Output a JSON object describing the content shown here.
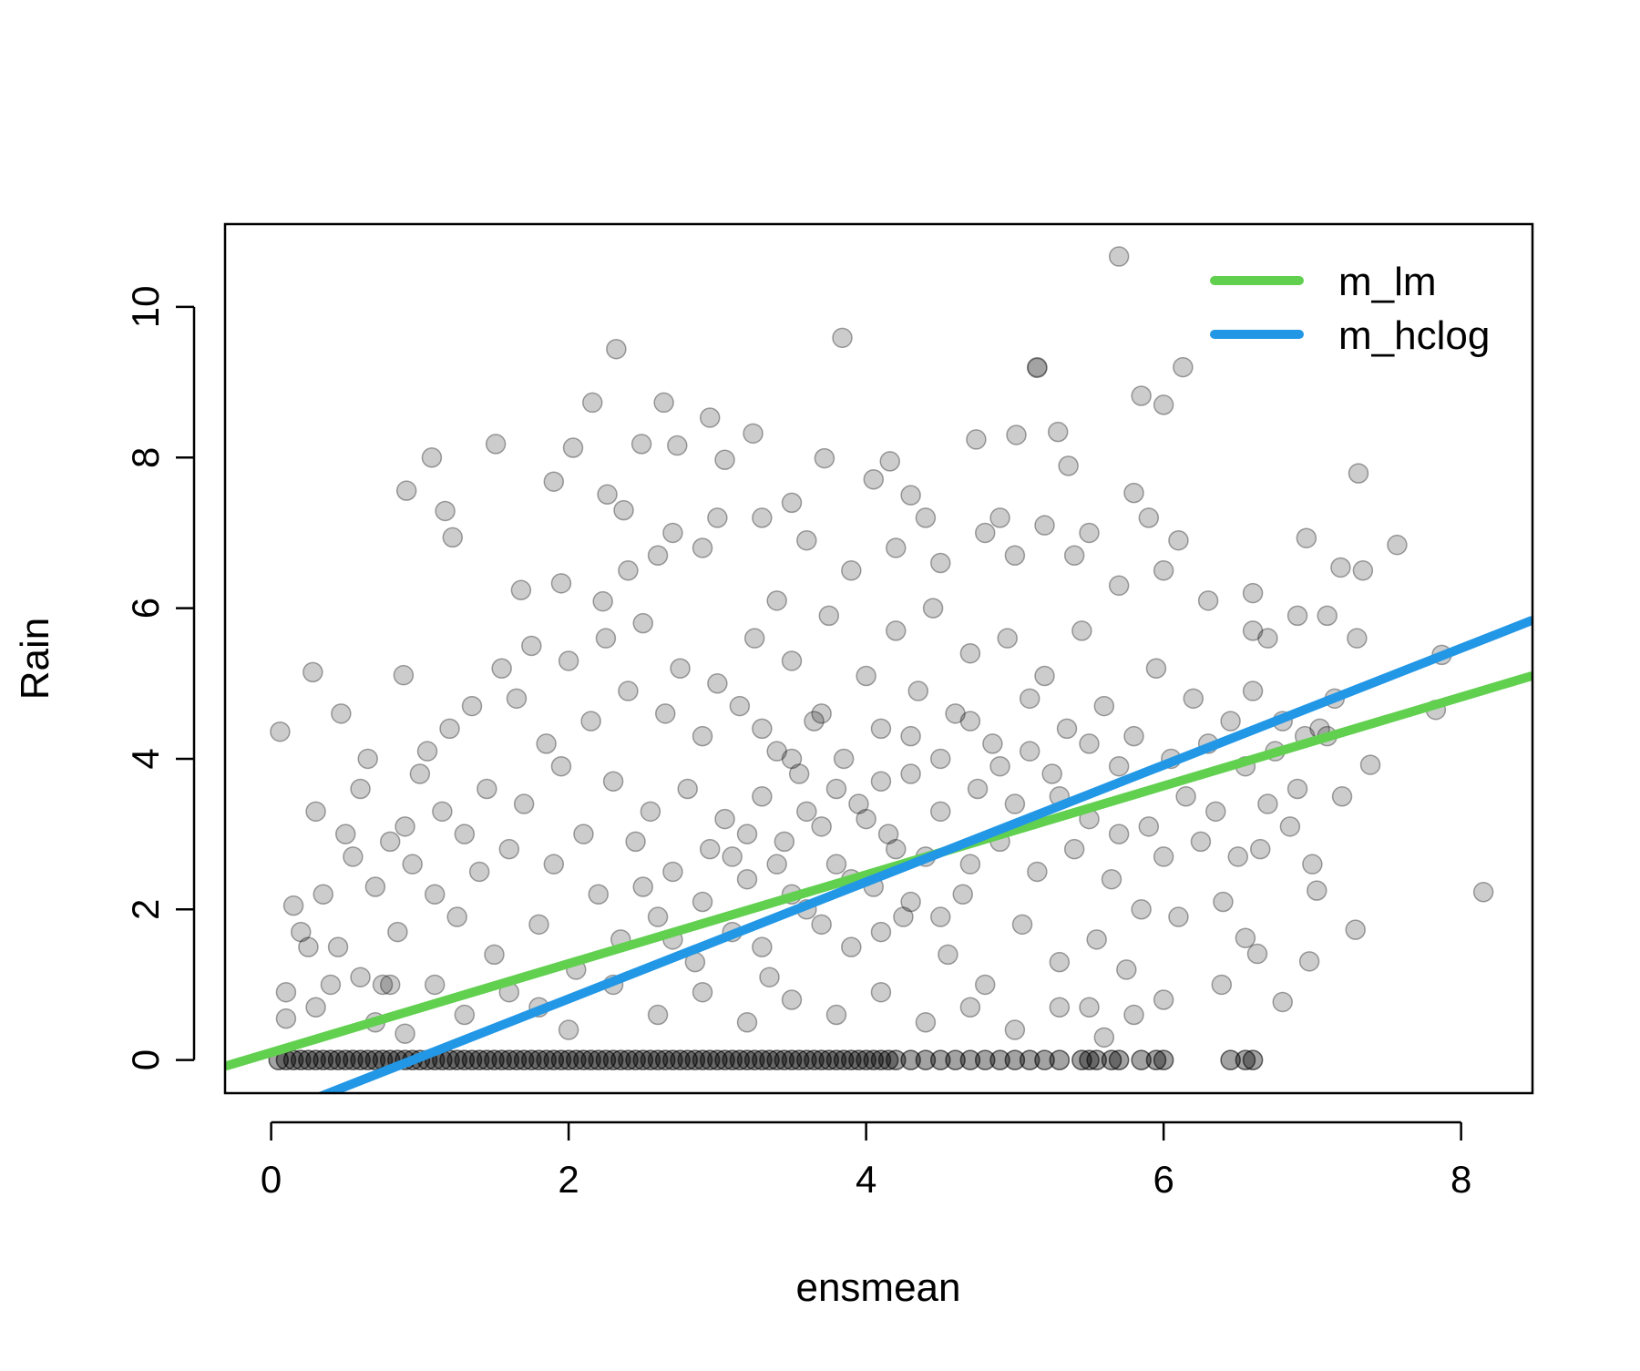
{
  "chart_data": {
    "type": "scatter",
    "title": "",
    "xlabel": "ensmean",
    "ylabel": "Rain",
    "xlim": [
      -0.31,
      8.48
    ],
    "ylim": [
      -0.44,
      11.1
    ],
    "x_ticks": [
      "0",
      "2",
      "4",
      "6",
      "8"
    ],
    "y_ticks": [
      "0",
      "2",
      "4",
      "6",
      "8",
      "10"
    ],
    "grid": false,
    "legend_position": "top-right",
    "point_color": "#000000",
    "point_alpha": 0.2,
    "points": [
      [
        5.7,
        10.67
      ],
      [
        2.32,
        9.44
      ],
      [
        3.84,
        9.59
      ],
      [
        5.15,
        9.19
      ],
      [
        5.15,
        9.2
      ],
      [
        6.13,
        9.2
      ],
      [
        5.85,
        8.82
      ],
      [
        6.0,
        8.7
      ],
      [
        2.16,
        8.73
      ],
      [
        2.64,
        8.73
      ],
      [
        2.95,
        8.53
      ],
      [
        3.24,
        8.32
      ],
      [
        5.29,
        8.34
      ],
      [
        5.01,
        8.3
      ],
      [
        4.74,
        8.24
      ],
      [
        2.49,
        8.18
      ],
      [
        1.51,
        8.18
      ],
      [
        2.03,
        8.13
      ],
      [
        2.73,
        8.16
      ],
      [
        1.08,
        8.0
      ],
      [
        3.05,
        7.97
      ],
      [
        3.72,
        7.99
      ],
      [
        4.16,
        7.95
      ],
      [
        5.36,
        7.89
      ],
      [
        7.31,
        7.79
      ],
      [
        0.91,
        7.56
      ],
      [
        1.9,
        7.68
      ],
      [
        2.26,
        7.51
      ],
      [
        4.05,
        7.71
      ],
      [
        5.8,
        7.53
      ],
      [
        1.17,
        7.29
      ],
      [
        2.37,
        7.3
      ],
      [
        1.22,
        6.94
      ],
      [
        7.57,
        6.84
      ],
      [
        6.96,
        6.93
      ],
      [
        7.19,
        6.54
      ],
      [
        7.34,
        6.5
      ],
      [
        1.68,
        6.24
      ],
      [
        1.95,
        6.33
      ],
      [
        2.23,
        6.09
      ],
      [
        0.28,
        5.15
      ],
      [
        0.89,
        5.11
      ],
      [
        0.06,
        4.36
      ],
      [
        0.47,
        4.6
      ],
      [
        8.15,
        2.23
      ],
      [
        7.87,
        5.38
      ],
      [
        7.83,
        4.65
      ],
      [
        7.39,
        3.92
      ],
      [
        7.29,
        1.73
      ],
      [
        6.98,
        1.31
      ],
      [
        6.8,
        0.77
      ],
      [
        6.39,
        1.0
      ],
      [
        7.03,
        2.25
      ],
      [
        6.55,
        1.62
      ],
      [
        6.63,
        1.41
      ],
      [
        4.4,
        7.2
      ],
      [
        4.3,
        7.5
      ],
      [
        4.8,
        7.0
      ],
      [
        4.9,
        7.2
      ],
      [
        5.2,
        7.1
      ],
      [
        5.5,
        7.0
      ],
      [
        5.9,
        7.2
      ],
      [
        6.1,
        6.9
      ],
      [
        3.5,
        7.4
      ],
      [
        3.0,
        7.2
      ],
      [
        3.3,
        7.2
      ],
      [
        2.7,
        7.0
      ],
      [
        2.9,
        6.8
      ],
      [
        3.6,
        6.9
      ],
      [
        3.9,
        6.5
      ],
      [
        4.2,
        6.8
      ],
      [
        4.5,
        6.6
      ],
      [
        5.0,
        6.7
      ],
      [
        5.4,
        6.7
      ],
      [
        5.7,
        6.3
      ],
      [
        6.0,
        6.5
      ],
      [
        6.3,
        6.1
      ],
      [
        6.6,
        6.2
      ],
      [
        6.9,
        5.9
      ],
      [
        7.1,
        5.9
      ],
      [
        7.3,
        5.6
      ],
      [
        6.7,
        5.6
      ],
      [
        2.4,
        6.5
      ],
      [
        2.6,
        6.7
      ],
      [
        3.4,
        6.1
      ],
      [
        0.1,
        0.9
      ],
      [
        0.1,
        0.55
      ],
      [
        0.2,
        1.7
      ],
      [
        0.15,
        2.05
      ],
      [
        0.3,
        3.3
      ],
      [
        0.25,
        1.5
      ],
      [
        0.35,
        2.2
      ],
      [
        0.4,
        1.0
      ],
      [
        0.45,
        1.5
      ],
      [
        0.3,
        0.7
      ],
      [
        0.5,
        3.0
      ],
      [
        0.55,
        2.7
      ],
      [
        0.6,
        3.6
      ],
      [
        0.65,
        4.0
      ],
      [
        0.7,
        2.3
      ],
      [
        0.75,
        1.0
      ],
      [
        0.8,
        2.9
      ],
      [
        0.85,
        1.7
      ],
      [
        0.9,
        3.1
      ],
      [
        0.95,
        2.6
      ],
      [
        0.6,
        1.1
      ],
      [
        0.7,
        0.5
      ],
      [
        0.8,
        1.0
      ],
      [
        0.9,
        0.35
      ],
      [
        1.0,
        3.8
      ],
      [
        1.05,
        4.1
      ],
      [
        1.1,
        2.2
      ],
      [
        1.15,
        3.3
      ],
      [
        1.2,
        4.4
      ],
      [
        1.25,
        1.9
      ],
      [
        1.3,
        3.0
      ],
      [
        1.35,
        4.7
      ],
      [
        1.4,
        2.5
      ],
      [
        1.45,
        3.6
      ],
      [
        1.5,
        1.4
      ],
      [
        1.55,
        5.2
      ],
      [
        1.6,
        2.8
      ],
      [
        1.65,
        4.8
      ],
      [
        1.7,
        3.4
      ],
      [
        1.75,
        5.5
      ],
      [
        1.8,
        1.8
      ],
      [
        1.85,
        4.2
      ],
      [
        1.9,
        2.6
      ],
      [
        1.95,
        3.9
      ],
      [
        2.0,
        5.3
      ],
      [
        2.05,
        1.2
      ],
      [
        2.1,
        3.0
      ],
      [
        2.15,
        4.5
      ],
      [
        2.2,
        2.2
      ],
      [
        2.25,
        5.6
      ],
      [
        2.3,
        3.7
      ],
      [
        2.35,
        1.6
      ],
      [
        2.4,
        4.9
      ],
      [
        2.45,
        2.9
      ],
      [
        2.5,
        5.8
      ],
      [
        2.55,
        3.3
      ],
      [
        2.6,
        1.9
      ],
      [
        2.65,
        4.6
      ],
      [
        2.7,
        2.5
      ],
      [
        2.75,
        5.2
      ],
      [
        2.8,
        3.6
      ],
      [
        2.85,
        1.3
      ],
      [
        2.9,
        4.3
      ],
      [
        2.95,
        2.8
      ],
      [
        3.0,
        5.0
      ],
      [
        3.05,
        3.2
      ],
      [
        3.1,
        1.7
      ],
      [
        3.15,
        4.7
      ],
      [
        3.2,
        2.4
      ],
      [
        3.25,
        5.6
      ],
      [
        3.3,
        3.5
      ],
      [
        3.35,
        1.1
      ],
      [
        3.4,
        4.1
      ],
      [
        3.45,
        2.9
      ],
      [
        3.5,
        5.3
      ],
      [
        3.55,
        3.8
      ],
      [
        3.6,
        2.0
      ],
      [
        3.65,
        4.5
      ],
      [
        3.7,
        3.1
      ],
      [
        3.75,
        5.9
      ],
      [
        3.8,
        2.6
      ],
      [
        3.85,
        4.0
      ],
      [
        3.9,
        1.5
      ],
      [
        3.95,
        3.4
      ],
      [
        4.0,
        5.1
      ],
      [
        4.05,
        2.3
      ],
      [
        4.1,
        4.4
      ],
      [
        4.15,
        3.0
      ],
      [
        4.2,
        5.7
      ],
      [
        4.25,
        1.9
      ],
      [
        4.3,
        3.8
      ],
      [
        4.35,
        4.9
      ],
      [
        4.4,
        2.7
      ],
      [
        4.45,
        6.0
      ],
      [
        4.5,
        3.3
      ],
      [
        4.55,
        1.4
      ],
      [
        4.6,
        4.6
      ],
      [
        4.65,
        2.2
      ],
      [
        4.7,
        5.4
      ],
      [
        4.75,
        3.6
      ],
      [
        4.8,
        1.0
      ],
      [
        4.85,
        4.2
      ],
      [
        4.9,
        2.9
      ],
      [
        4.95,
        5.6
      ],
      [
        5.0,
        3.4
      ],
      [
        5.05,
        1.8
      ],
      [
        5.1,
        4.8
      ],
      [
        5.15,
        2.5
      ],
      [
        5.2,
        5.1
      ],
      [
        5.25,
        3.8
      ],
      [
        5.3,
        1.3
      ],
      [
        5.35,
        4.4
      ],
      [
        5.4,
        2.8
      ],
      [
        5.45,
        5.7
      ],
      [
        5.5,
        3.2
      ],
      [
        5.55,
        1.6
      ],
      [
        5.6,
        4.7
      ],
      [
        5.65,
        2.4
      ],
      [
        5.7,
        3.9
      ],
      [
        5.75,
        1.2
      ],
      [
        5.8,
        4.3
      ],
      [
        5.85,
        2.0
      ],
      [
        5.9,
        3.1
      ],
      [
        5.95,
        5.2
      ],
      [
        6.0,
        2.7
      ],
      [
        6.05,
        4.0
      ],
      [
        6.1,
        1.9
      ],
      [
        6.15,
        3.5
      ],
      [
        6.2,
        4.8
      ],
      [
        6.25,
        2.9
      ],
      [
        6.3,
        4.2
      ],
      [
        6.35,
        3.3
      ],
      [
        6.4,
        2.1
      ],
      [
        6.45,
        4.5
      ],
      [
        6.5,
        2.7
      ],
      [
        6.55,
        3.9
      ],
      [
        6.6,
        4.9
      ],
      [
        6.65,
        2.8
      ],
      [
        6.7,
        3.4
      ],
      [
        6.75,
        4.1
      ],
      [
        6.85,
        3.1
      ],
      [
        6.9,
        3.6
      ],
      [
        7.0,
        2.6
      ],
      [
        7.05,
        4.4
      ],
      [
        7.1,
        4.3
      ],
      [
        7.2,
        3.5
      ],
      [
        6.8,
        4.5
      ],
      [
        6.95,
        4.3
      ],
      [
        7.15,
        4.8
      ],
      [
        6.6,
        5.7
      ],
      [
        3.2,
        3.0
      ],
      [
        3.4,
        2.6
      ],
      [
        3.6,
        3.3
      ],
      [
        3.8,
        3.6
      ],
      [
        4.0,
        3.2
      ],
      [
        4.2,
        2.8
      ],
      [
        3.5,
        2.2
      ],
      [
        3.7,
        1.8
      ],
      [
        3.3,
        1.5
      ],
      [
        3.9,
        2.4
      ],
      [
        4.1,
        1.7
      ],
      [
        4.3,
        2.1
      ],
      [
        4.5,
        1.9
      ],
      [
        4.7,
        2.6
      ],
      [
        2.9,
        2.1
      ],
      [
        2.7,
        1.6
      ],
      [
        2.5,
        2.3
      ],
      [
        3.1,
        2.7
      ],
      [
        3.3,
        4.4
      ],
      [
        3.5,
        4.0
      ],
      [
        3.7,
        4.6
      ],
      [
        4.1,
        3.7
      ],
      [
        4.3,
        4.3
      ],
      [
        4.5,
        4.0
      ],
      [
        4.7,
        4.5
      ],
      [
        4.9,
        3.9
      ],
      [
        5.1,
        4.1
      ],
      [
        5.3,
        3.5
      ],
      [
        5.5,
        4.2
      ],
      [
        5.7,
        3.0
      ],
      [
        2.3,
        1.0
      ],
      [
        2.6,
        0.6
      ],
      [
        2.9,
        0.9
      ],
      [
        3.2,
        0.5
      ],
      [
        3.5,
        0.8
      ],
      [
        3.8,
        0.6
      ],
      [
        4.1,
        0.9
      ],
      [
        4.4,
        0.5
      ],
      [
        4.7,
        0.7
      ],
      [
        5.0,
        0.4
      ],
      [
        1.8,
        0.7
      ],
      [
        2.0,
        0.4
      ],
      [
        1.6,
        0.9
      ],
      [
        1.3,
        0.6
      ],
      [
        1.1,
        1.0
      ],
      [
        5.3,
        0.7
      ],
      [
        5.6,
        0.3
      ],
      [
        5.8,
        0.6
      ],
      [
        6.0,
        0.8
      ],
      [
        5.5,
        0.7
      ]
    ],
    "zero_points_x": [
      0.05,
      0.1,
      0.15,
      0.2,
      0.25,
      0.3,
      0.35,
      0.4,
      0.45,
      0.5,
      0.55,
      0.6,
      0.65,
      0.7,
      0.75,
      0.8,
      0.85,
      0.9,
      0.95,
      1.0,
      1.05,
      1.1,
      1.15,
      1.2,
      1.25,
      1.3,
      1.35,
      1.4,
      1.45,
      1.5,
      1.55,
      1.6,
      1.65,
      1.7,
      1.75,
      1.8,
      1.85,
      1.9,
      1.95,
      2.0,
      2.05,
      2.1,
      2.15,
      2.2,
      2.25,
      2.3,
      2.35,
      2.4,
      2.45,
      2.5,
      2.55,
      2.6,
      2.65,
      2.7,
      2.75,
      2.8,
      2.85,
      2.9,
      2.95,
      3.0,
      3.05,
      3.1,
      3.15,
      3.2,
      3.25,
      3.3,
      3.35,
      3.4,
      3.45,
      3.5,
      3.55,
      3.6,
      3.65,
      3.7,
      3.75,
      3.8,
      3.85,
      3.9,
      3.95,
      4.0,
      4.05,
      4.1,
      4.15,
      4.2,
      4.3,
      4.4,
      4.5,
      4.6,
      4.7,
      4.8,
      4.9,
      5.0,
      5.1,
      5.2,
      5.3,
      5.45,
      5.5,
      5.55,
      5.65,
      5.7,
      5.85,
      5.95,
      6.0,
      6.45,
      6.55,
      6.6
    ],
    "series": [
      {
        "name": "m_lm",
        "type": "line",
        "color": "#61D04F",
        "intercept": 0.1,
        "slope": 0.59
      },
      {
        "name": "m_hclog",
        "type": "line",
        "color": "#2297E6",
        "intercept": -0.74,
        "slope": 0.776
      }
    ]
  }
}
